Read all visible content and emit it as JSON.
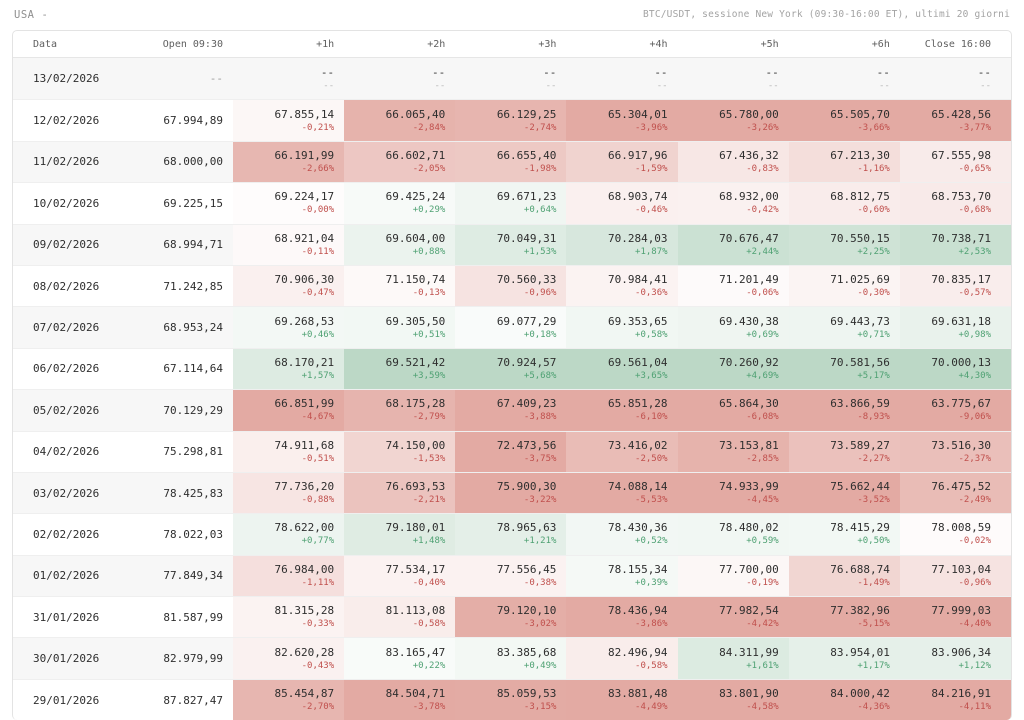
{
  "top_bar": {
    "market": "USA",
    "market_suffix": "-",
    "subtitle": "BTC/USDT, sessione New York (09:30-16:00 ET), ultimi 20 giorni"
  },
  "colors": {
    "positive_text": "#4fa173",
    "negative_text": "#c0504d",
    "positive_bg_full": "#bcd8c6",
    "negative_bg_full": "#e3aaa3",
    "stripe_bg": "#f7f7f7"
  },
  "table": {
    "columns": [
      "Data",
      "Open 09:30",
      "+1h",
      "+2h",
      "+3h",
      "+4h",
      "+5h",
      "+6h",
      "Close 16:00"
    ],
    "rows": [
      {
        "date": "13/02/2026",
        "open": "--",
        "cells": [
          {
            "price": "--",
            "pct": "--"
          },
          {
            "price": "--",
            "pct": "--"
          },
          {
            "price": "--",
            "pct": "--"
          },
          {
            "price": "--",
            "pct": "--"
          },
          {
            "price": "--",
            "pct": "--"
          },
          {
            "price": "--",
            "pct": "--"
          },
          {
            "price": "--",
            "pct": "--"
          }
        ]
      },
      {
        "date": "12/02/2026",
        "open": "67.994,89",
        "cells": [
          {
            "price": "67.855,14",
            "pct": "-0,21%"
          },
          {
            "price": "66.065,40",
            "pct": "-2,84%"
          },
          {
            "price": "66.129,25",
            "pct": "-2,74%"
          },
          {
            "price": "65.304,01",
            "pct": "-3,96%"
          },
          {
            "price": "65.780,00",
            "pct": "-3,26%"
          },
          {
            "price": "65.505,70",
            "pct": "-3,66%"
          },
          {
            "price": "65.428,56",
            "pct": "-3,77%"
          }
        ]
      },
      {
        "date": "11/02/2026",
        "open": "68.000,00",
        "cells": [
          {
            "price": "66.191,99",
            "pct": "-2,66%"
          },
          {
            "price": "66.602,71",
            "pct": "-2,05%"
          },
          {
            "price": "66.655,40",
            "pct": "-1,98%"
          },
          {
            "price": "66.917,96",
            "pct": "-1,59%"
          },
          {
            "price": "67.436,32",
            "pct": "-0,83%"
          },
          {
            "price": "67.213,30",
            "pct": "-1,16%"
          },
          {
            "price": "67.555,98",
            "pct": "-0,65%"
          }
        ]
      },
      {
        "date": "10/02/2026",
        "open": "69.225,15",
        "cells": [
          {
            "price": "69.224,17",
            "pct": "-0,00%"
          },
          {
            "price": "69.425,24",
            "pct": "+0,29%"
          },
          {
            "price": "69.671,23",
            "pct": "+0,64%"
          },
          {
            "price": "68.903,74",
            "pct": "-0,46%"
          },
          {
            "price": "68.932,00",
            "pct": "-0,42%"
          },
          {
            "price": "68.812,75",
            "pct": "-0,60%"
          },
          {
            "price": "68.753,70",
            "pct": "-0,68%"
          }
        ]
      },
      {
        "date": "09/02/2026",
        "open": "68.994,71",
        "cells": [
          {
            "price": "68.921,04",
            "pct": "-0,11%"
          },
          {
            "price": "69.604,00",
            "pct": "+0,88%"
          },
          {
            "price": "70.049,31",
            "pct": "+1,53%"
          },
          {
            "price": "70.284,03",
            "pct": "+1,87%"
          },
          {
            "price": "70.676,47",
            "pct": "+2,44%"
          },
          {
            "price": "70.550,15",
            "pct": "+2,25%"
          },
          {
            "price": "70.738,71",
            "pct": "+2,53%"
          }
        ]
      },
      {
        "date": "08/02/2026",
        "open": "71.242,85",
        "cells": [
          {
            "price": "70.906,30",
            "pct": "-0,47%"
          },
          {
            "price": "71.150,74",
            "pct": "-0,13%"
          },
          {
            "price": "70.560,33",
            "pct": "-0,96%"
          },
          {
            "price": "70.984,41",
            "pct": "-0,36%"
          },
          {
            "price": "71.201,49",
            "pct": "-0,06%"
          },
          {
            "price": "71.025,69",
            "pct": "-0,30%"
          },
          {
            "price": "70.835,17",
            "pct": "-0,57%"
          }
        ]
      },
      {
        "date": "07/02/2026",
        "open": "68.953,24",
        "cells": [
          {
            "price": "69.268,53",
            "pct": "+0,46%"
          },
          {
            "price": "69.305,50",
            "pct": "+0,51%"
          },
          {
            "price": "69.077,29",
            "pct": "+0,18%"
          },
          {
            "price": "69.353,65",
            "pct": "+0,58%"
          },
          {
            "price": "69.430,38",
            "pct": "+0,69%"
          },
          {
            "price": "69.443,73",
            "pct": "+0,71%"
          },
          {
            "price": "69.631,18",
            "pct": "+0,98%"
          }
        ]
      },
      {
        "date": "06/02/2026",
        "open": "67.114,64",
        "cells": [
          {
            "price": "68.170,21",
            "pct": "+1,57%"
          },
          {
            "price": "69.521,42",
            "pct": "+3,59%"
          },
          {
            "price": "70.924,57",
            "pct": "+5,68%"
          },
          {
            "price": "69.561,04",
            "pct": "+3,65%"
          },
          {
            "price": "70.260,92",
            "pct": "+4,69%"
          },
          {
            "price": "70.581,56",
            "pct": "+5,17%"
          },
          {
            "price": "70.000,13",
            "pct": "+4,30%"
          }
        ]
      },
      {
        "date": "05/02/2026",
        "open": "70.129,29",
        "cells": [
          {
            "price": "66.851,99",
            "pct": "-4,67%"
          },
          {
            "price": "68.175,28",
            "pct": "-2,79%"
          },
          {
            "price": "67.409,23",
            "pct": "-3,88%"
          },
          {
            "price": "65.851,28",
            "pct": "-6,10%"
          },
          {
            "price": "65.864,30",
            "pct": "-6,08%"
          },
          {
            "price": "63.866,59",
            "pct": "-8,93%"
          },
          {
            "price": "63.775,67",
            "pct": "-9,06%"
          }
        ]
      },
      {
        "date": "04/02/2026",
        "open": "75.298,81",
        "cells": [
          {
            "price": "74.911,68",
            "pct": "-0,51%"
          },
          {
            "price": "74.150,00",
            "pct": "-1,53%"
          },
          {
            "price": "72.473,56",
            "pct": "-3,75%"
          },
          {
            "price": "73.416,02",
            "pct": "-2,50%"
          },
          {
            "price": "73.153,81",
            "pct": "-2,85%"
          },
          {
            "price": "73.589,27",
            "pct": "-2,27%"
          },
          {
            "price": "73.516,30",
            "pct": "-2,37%"
          }
        ]
      },
      {
        "date": "03/02/2026",
        "open": "78.425,83",
        "cells": [
          {
            "price": "77.736,20",
            "pct": "-0,88%"
          },
          {
            "price": "76.693,53",
            "pct": "-2,21%"
          },
          {
            "price": "75.900,30",
            "pct": "-3,22%"
          },
          {
            "price": "74.088,14",
            "pct": "-5,53%"
          },
          {
            "price": "74.933,99",
            "pct": "-4,45%"
          },
          {
            "price": "75.662,44",
            "pct": "-3,52%"
          },
          {
            "price": "76.475,52",
            "pct": "-2,49%"
          }
        ]
      },
      {
        "date": "02/02/2026",
        "open": "78.022,03",
        "cells": [
          {
            "price": "78.622,00",
            "pct": "+0,77%"
          },
          {
            "price": "79.180,01",
            "pct": "+1,48%"
          },
          {
            "price": "78.965,63",
            "pct": "+1,21%"
          },
          {
            "price": "78.430,36",
            "pct": "+0,52%"
          },
          {
            "price": "78.480,02",
            "pct": "+0,59%"
          },
          {
            "price": "78.415,29",
            "pct": "+0,50%"
          },
          {
            "price": "78.008,59",
            "pct": "-0,02%"
          }
        ]
      },
      {
        "date": "01/02/2026",
        "open": "77.849,34",
        "cells": [
          {
            "price": "76.984,00",
            "pct": "-1,11%"
          },
          {
            "price": "77.534,17",
            "pct": "-0,40%"
          },
          {
            "price": "77.556,45",
            "pct": "-0,38%"
          },
          {
            "price": "78.155,34",
            "pct": "+0,39%"
          },
          {
            "price": "77.700,00",
            "pct": "-0,19%"
          },
          {
            "price": "76.688,74",
            "pct": "-1,49%"
          },
          {
            "price": "77.103,04",
            "pct": "-0,96%"
          }
        ]
      },
      {
        "date": "31/01/2026",
        "open": "81.587,99",
        "cells": [
          {
            "price": "81.315,28",
            "pct": "-0,33%"
          },
          {
            "price": "81.113,08",
            "pct": "-0,58%"
          },
          {
            "price": "79.120,10",
            "pct": "-3,02%"
          },
          {
            "price": "78.436,94",
            "pct": "-3,86%"
          },
          {
            "price": "77.982,54",
            "pct": "-4,42%"
          },
          {
            "price": "77.382,96",
            "pct": "-5,15%"
          },
          {
            "price": "77.999,03",
            "pct": "-4,40%"
          }
        ]
      },
      {
        "date": "30/01/2026",
        "open": "82.979,99",
        "cells": [
          {
            "price": "82.620,28",
            "pct": "-0,43%"
          },
          {
            "price": "83.165,47",
            "pct": "+0,22%"
          },
          {
            "price": "83.385,68",
            "pct": "+0,49%"
          },
          {
            "price": "82.496,94",
            "pct": "-0,58%"
          },
          {
            "price": "84.311,99",
            "pct": "+1,61%"
          },
          {
            "price": "83.954,01",
            "pct": "+1,17%"
          },
          {
            "price": "83.906,34",
            "pct": "+1,12%"
          }
        ]
      },
      {
        "date": "29/01/2026",
        "open": "87.827,47",
        "cells": [
          {
            "price": "85.454,87",
            "pct": "-2,70%"
          },
          {
            "price": "84.504,71",
            "pct": "-3,78%"
          },
          {
            "price": "85.059,53",
            "pct": "-3,15%"
          },
          {
            "price": "83.881,48",
            "pct": "-4,49%"
          },
          {
            "price": "83.801,90",
            "pct": "-4,58%"
          },
          {
            "price": "84.000,42",
            "pct": "-4,36%"
          },
          {
            "price": "84.216,91",
            "pct": "-4,11%"
          }
        ]
      }
    ]
  }
}
